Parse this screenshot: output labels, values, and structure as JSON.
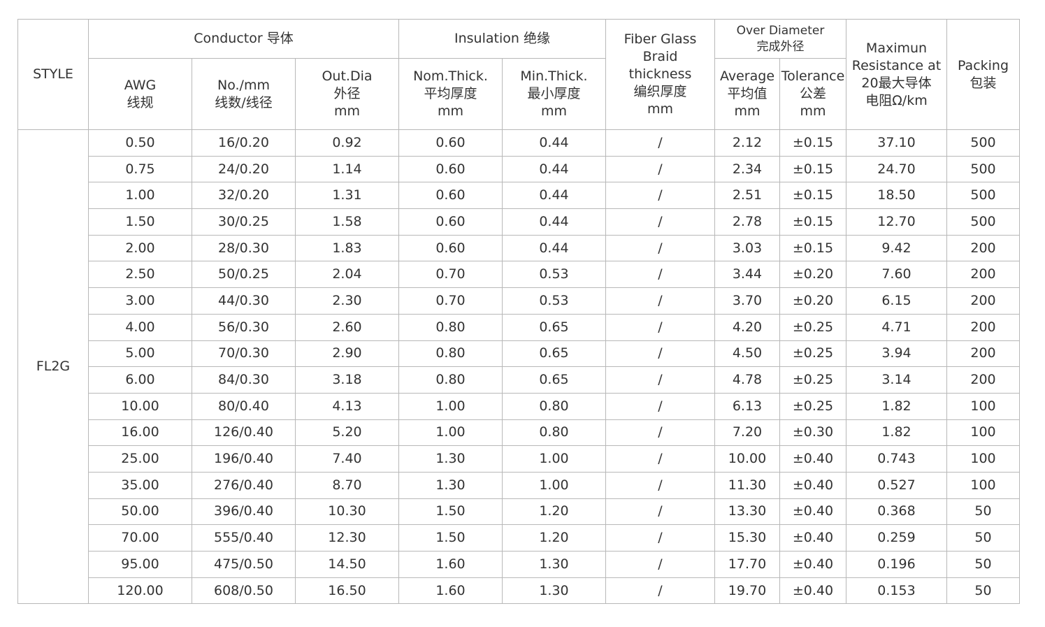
{
  "header": {
    "style": "STYLE",
    "conductor": "Conductor 导体",
    "insulation": "Insulation 绝缘",
    "fiber_glass": [
      "Fiber Glass",
      "Braid",
      "thickness",
      "编织厚度",
      "mm"
    ],
    "over_diameter": [
      "Over Diameter",
      "完成外径"
    ],
    "resistance": [
      "Maximun",
      "Resistance at",
      "20最大导体",
      "电阻Ω/km"
    ],
    "packing": [
      "Packing",
      "包装"
    ],
    "awg": [
      "AWG",
      "线规"
    ],
    "no_mm": [
      "No./mm",
      "线数/线径"
    ],
    "out_dia": [
      "Out.Dia",
      "外径",
      "mm"
    ],
    "nom_thick": [
      "Nom.Thick.",
      "平均厚度",
      "mm"
    ],
    "min_thick": [
      "Min.Thick.",
      "最小厚度",
      "mm"
    ],
    "average": [
      "Average",
      "平均值",
      "mm"
    ],
    "tolerance": [
      "Tolerance",
      "公差",
      "mm"
    ]
  },
  "style_value": "FL2G",
  "rows": [
    [
      "0.50",
      "16/0.20",
      "0.92",
      "0.60",
      "0.44",
      "/",
      "2.12",
      "±0.15",
      "37.10",
      "500"
    ],
    [
      "0.75",
      "24/0.20",
      "1.14",
      "0.60",
      "0.44",
      "/",
      "2.34",
      "±0.15",
      "24.70",
      "500"
    ],
    [
      "1.00",
      "32/0.20",
      "1.31",
      "0.60",
      "0.44",
      "/",
      "2.51",
      "±0.15",
      "18.50",
      "500"
    ],
    [
      "1.50",
      "30/0.25",
      "1.58",
      "0.60",
      "0.44",
      "/",
      "2.78",
      "±0.15",
      "12.70",
      "500"
    ],
    [
      "2.00",
      "28/0.30",
      "1.83",
      "0.60",
      "0.44",
      "/",
      "3.03",
      "±0.15",
      "9.42",
      "200"
    ],
    [
      "2.50",
      "50/0.25",
      "2.04",
      "0.70",
      "0.53",
      "/",
      "3.44",
      "±0.20",
      "7.60",
      "200"
    ],
    [
      "3.00",
      "44/0.30",
      "2.30",
      "0.70",
      "0.53",
      "/",
      "3.70",
      "±0.20",
      "6.15",
      "200"
    ],
    [
      "4.00",
      "56/0.30",
      "2.60",
      "0.80",
      "0.65",
      "/",
      "4.20",
      "±0.25",
      "4.71",
      "200"
    ],
    [
      "5.00",
      "70/0.30",
      "2.90",
      "0.80",
      "0.65",
      "/",
      "4.50",
      "±0.25",
      "3.94",
      "200"
    ],
    [
      "6.00",
      "84/0.30",
      "3.18",
      "0.80",
      "0.65",
      "/",
      "4.78",
      "±0.25",
      "3.14",
      "200"
    ],
    [
      "10.00",
      "80/0.40",
      "4.13",
      "1.00",
      "0.80",
      "/",
      "6.13",
      "±0.25",
      "1.82",
      "100"
    ],
    [
      "16.00",
      "126/0.40",
      "5.20",
      "1.00",
      "0.80",
      "/",
      "7.20",
      "±0.30",
      "1.82",
      "100"
    ],
    [
      "25.00",
      "196/0.40",
      "7.40",
      "1.30",
      "1.00",
      "/",
      "10.00",
      "±0.40",
      "0.743",
      "100"
    ],
    [
      "35.00",
      "276/0.40",
      "8.70",
      "1.30",
      "1.00",
      "/",
      "11.30",
      "±0.40",
      "0.527",
      "100"
    ],
    [
      "50.00",
      "396/0.40",
      "10.30",
      "1.50",
      "1.20",
      "/",
      "13.30",
      "±0.40",
      "0.368",
      "50"
    ],
    [
      "70.00",
      "555/0.40",
      "12.30",
      "1.50",
      "1.20",
      "/",
      "15.30",
      "±0.40",
      "0.259",
      "50"
    ],
    [
      "95.00",
      "475/0.50",
      "14.50",
      "1.60",
      "1.30",
      "/",
      "17.70",
      "±0.40",
      "0.196",
      "50"
    ],
    [
      "120.00",
      "608/0.50",
      "16.50",
      "1.60",
      "1.30",
      "/",
      "19.70",
      "±0.40",
      "0.153",
      "50"
    ]
  ]
}
